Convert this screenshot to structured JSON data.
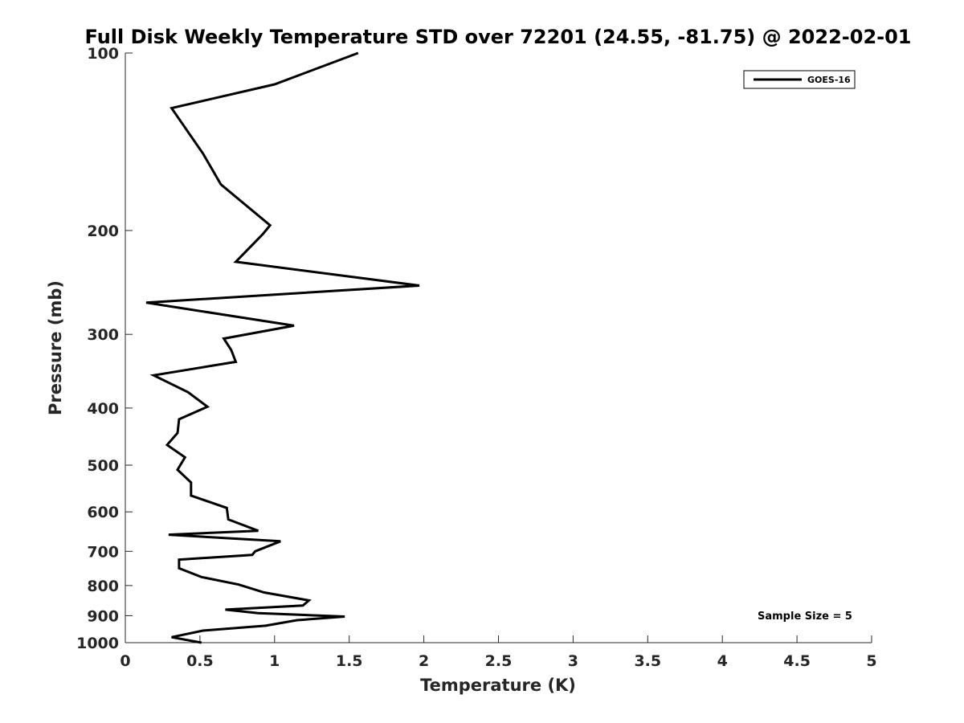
{
  "chart_data": {
    "type": "line",
    "title": "Full Disk Weekly Temperature STD over 72201 (24.55, -81.75) @ 2022-02-01",
    "xlabel": "Temperature (K)",
    "ylabel": "Pressure (mb)",
    "xlim": [
      0,
      5
    ],
    "ylim": [
      100,
      1000
    ],
    "y_scale": "log",
    "y_reversed": true,
    "grid": false,
    "legend_position": "top-right",
    "x_ticks": [
      0,
      0.5,
      1,
      1.5,
      2,
      2.5,
      3,
      3.5,
      4,
      4.5,
      5
    ],
    "x_tick_labels": [
      "0",
      "0.5",
      "1",
      "1.5",
      "2",
      "2.5",
      "3",
      "3.5",
      "4",
      "4.5",
      "5"
    ],
    "y_ticks": [
      100,
      200,
      300,
      400,
      500,
      600,
      700,
      800,
      900,
      1000
    ],
    "y_tick_labels": [
      "100",
      "200",
      "300",
      "400",
      "500",
      "600",
      "700",
      "800",
      "900",
      "1000"
    ],
    "series": [
      {
        "name": "GOES-16",
        "color": "#000000",
        "x": [
          1.56,
          1.0,
          0.31,
          0.52,
          0.64,
          0.97,
          0.92,
          0.74,
          1.97,
          0.14,
          1.13,
          0.66,
          0.71,
          0.74,
          0.19,
          0.42,
          0.55,
          0.36,
          0.35,
          0.28,
          0.4,
          0.35,
          0.44,
          0.44,
          0.68,
          0.69,
          0.89,
          0.29,
          1.04,
          0.87,
          0.85,
          0.36,
          0.36,
          0.51,
          0.76,
          0.93,
          1.23,
          1.19,
          0.67,
          0.89,
          1.47,
          1.15,
          0.94,
          0.52,
          0.31,
          0.51
        ],
        "y": [
          100,
          113,
          124,
          148,
          167,
          196,
          203,
          226,
          248,
          265,
          290,
          305,
          319,
          334,
          352,
          376,
          398,
          418,
          441,
          462,
          485,
          509,
          535,
          563,
          591,
          618,
          646,
          656,
          673,
          700,
          710,
          723,
          748,
          774,
          797,
          822,
          848,
          865,
          879,
          891,
          903,
          916,
          936,
          954,
          979,
          1000
        ]
      }
    ],
    "annotation": "Sample Size = 5"
  }
}
